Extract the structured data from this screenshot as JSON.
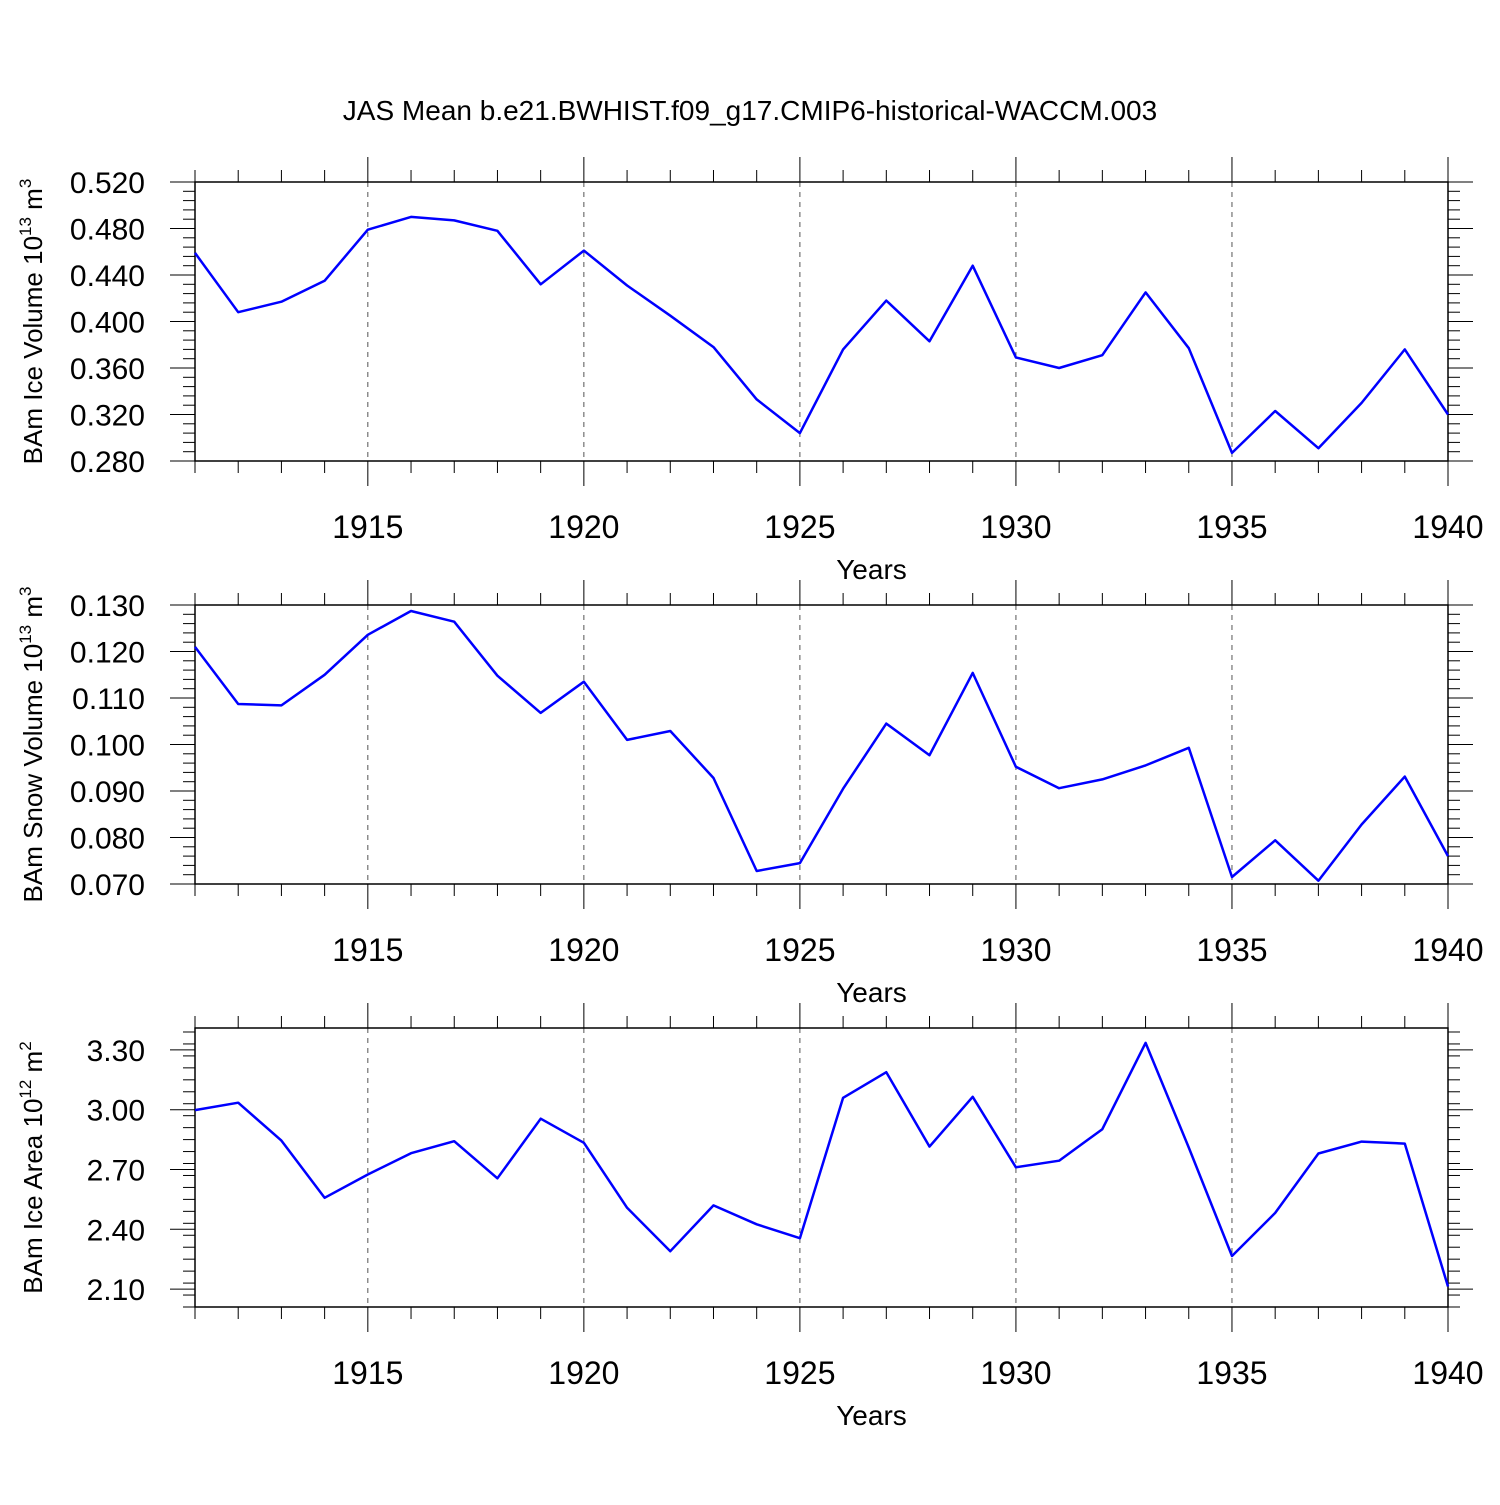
{
  "title": "JAS Mean b.e21.BWHIST.f09_g17.CMIP6-historical-WACCM.003",
  "chart_data": [
    {
      "type": "line",
      "ylabel_main": "BAm Ice Volume 10",
      "ylabel_exp": "13",
      "ylabel_unit": "m",
      "ylabel_unit_exp": "3",
      "xlabel": "Years",
      "xlim": [
        1911,
        1940
      ],
      "ylim": [
        0.28,
        0.52
      ],
      "xticks": [
        1915,
        1920,
        1925,
        1930,
        1935,
        1940
      ],
      "xtick_labels": [
        "1915",
        "1920",
        "1925",
        "1930",
        "1935",
        "1940"
      ],
      "yticks": [
        0.28,
        0.32,
        0.36,
        0.4,
        0.44,
        0.48,
        0.52
      ],
      "ytick_labels": [
        "0.280",
        "0.320",
        "0.360",
        "0.400",
        "0.440",
        "0.480",
        "0.520"
      ],
      "yminor_step": 0.008,
      "x": [
        1911,
        1912,
        1913,
        1914,
        1915,
        1916,
        1917,
        1918,
        1919,
        1920,
        1921,
        1922,
        1923,
        1924,
        1925,
        1926,
        1927,
        1928,
        1929,
        1930,
        1931,
        1932,
        1933,
        1934,
        1935,
        1936,
        1937,
        1938,
        1939,
        1940
      ],
      "y": [
        0.459,
        0.408,
        0.417,
        0.435,
        0.479,
        0.49,
        0.487,
        0.478,
        0.432,
        0.461,
        0.431,
        0.405,
        0.378,
        0.333,
        0.304,
        0.376,
        0.418,
        0.383,
        0.448,
        0.369,
        0.36,
        0.371,
        0.425,
        0.377,
        0.287,
        0.323,
        0.291,
        0.33,
        0.376,
        0.32
      ],
      "color": "#0000ff",
      "grid": "vertical dashed at x ticks"
    },
    {
      "type": "line",
      "ylabel_main": "BAm Snow Volume 10",
      "ylabel_exp": "13",
      "ylabel_unit": "m",
      "ylabel_unit_exp": "3",
      "xlabel": "Years",
      "xlim": [
        1911,
        1940
      ],
      "ylim": [
        0.07,
        0.13
      ],
      "xticks": [
        1915,
        1920,
        1925,
        1930,
        1935,
        1940
      ],
      "xtick_labels": [
        "1915",
        "1920",
        "1925",
        "1930",
        "1935",
        "1940"
      ],
      "yticks": [
        0.07,
        0.08,
        0.09,
        0.1,
        0.11,
        0.12,
        0.13
      ],
      "ytick_labels": [
        "0.070",
        "0.080",
        "0.090",
        "0.100",
        "0.110",
        "0.120",
        "0.130"
      ],
      "yminor_step": 0.002,
      "x": [
        1911,
        1912,
        1913,
        1914,
        1915,
        1916,
        1917,
        1918,
        1919,
        1920,
        1921,
        1922,
        1923,
        1924,
        1925,
        1926,
        1927,
        1928,
        1929,
        1930,
        1931,
        1932,
        1933,
        1934,
        1935,
        1936,
        1937,
        1938,
        1939,
        1940
      ],
      "y": [
        0.121,
        0.1087,
        0.1084,
        0.115,
        0.1236,
        0.1287,
        0.1264,
        0.1148,
        0.1068,
        0.1135,
        0.101,
        0.1029,
        0.0928,
        0.0728,
        0.0745,
        0.0905,
        0.1045,
        0.0977,
        0.1154,
        0.0952,
        0.0906,
        0.0925,
        0.0955,
        0.0993,
        0.0715,
        0.0794,
        0.0707,
        0.0828,
        0.0931,
        0.076
      ],
      "color": "#0000ff",
      "grid": "vertical dashed at x ticks"
    },
    {
      "type": "line",
      "ylabel_main": "BAm Ice Area 10",
      "ylabel_exp": "12",
      "ylabel_unit": "m",
      "ylabel_unit_exp": "2",
      "xlabel": "Years",
      "xlim": [
        1911,
        1940
      ],
      "ylim": [
        2.01,
        3.41
      ],
      "xticks": [
        1915,
        1920,
        1925,
        1930,
        1935,
        1940
      ],
      "xtick_labels": [
        "1915",
        "1920",
        "1925",
        "1930",
        "1935",
        "1940"
      ],
      "yticks": [
        2.1,
        2.4,
        2.7,
        3.0,
        3.3
      ],
      "ytick_labels": [
        "2.10",
        "2.40",
        "2.70",
        "3.00",
        "3.30"
      ],
      "yminor_step": 0.06,
      "x": [
        1911,
        1912,
        1913,
        1914,
        1915,
        1916,
        1917,
        1918,
        1919,
        1920,
        1921,
        1922,
        1923,
        1924,
        1925,
        1926,
        1927,
        1928,
        1929,
        1930,
        1931,
        1932,
        1933,
        1934,
        1935,
        1936,
        1937,
        1938,
        1939,
        1940
      ],
      "y": [
        2.998,
        3.035,
        2.845,
        2.558,
        2.675,
        2.782,
        2.842,
        2.656,
        2.955,
        2.834,
        2.508,
        2.29,
        2.52,
        2.425,
        2.355,
        3.06,
        3.188,
        2.815,
        3.065,
        2.711,
        2.744,
        2.902,
        3.335,
        2.81,
        2.266,
        2.482,
        2.78,
        2.84,
        2.83,
        2.113
      ],
      "color": "#0000ff",
      "grid": "vertical dashed at x ticks"
    }
  ]
}
